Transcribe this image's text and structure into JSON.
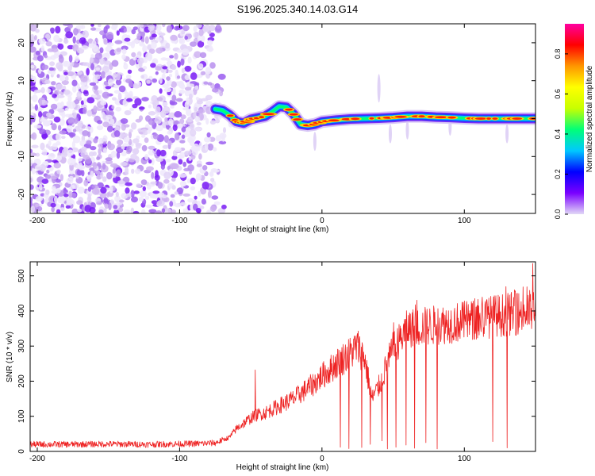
{
  "figure": {
    "title": "S196.2025.340.14.03.G14"
  },
  "colors": {
    "snr_line": "#ee2222",
    "frame": "#000000"
  },
  "chart_data": [
    {
      "type": "heatmap",
      "title": "S196.2025.340.14.03.G14",
      "xlabel": "Height of straight line (km)",
      "ylabel": "Frequency (Hz)",
      "xlim": [
        -205,
        150
      ],
      "ylim": [
        -25,
        25
      ],
      "xticks": [
        -200,
        -100,
        0,
        100
      ],
      "yticks": [
        -20,
        -10,
        0,
        10,
        20
      ],
      "grid": false,
      "noise_region_x": [
        -205,
        -75
      ],
      "colorbar": {
        "label": "Normalized spectral amplitude",
        "ticks": [
          0.0,
          0.2,
          0.4,
          0.6,
          0.8
        ],
        "range": [
          0,
          0.95
        ],
        "colormap": [
          "#e2d8f6",
          "#7a00ff",
          "#0000ff",
          "#00c8ff",
          "#00ff78",
          "#c8ff00",
          "#ffff00",
          "#ff9600",
          "#ff0000",
          "#ff00a0"
        ]
      },
      "ridge": {
        "x": [
          -75,
          -70,
          -65,
          -60,
          -55,
          -50,
          -45,
          -40,
          -35,
          -30,
          -25,
          -20,
          -15,
          -10,
          -5,
          0,
          10,
          20,
          30,
          40,
          50,
          60,
          70,
          80,
          90,
          100,
          110,
          120,
          130,
          140,
          150
        ],
        "y": [
          2.5,
          2.2,
          1.0,
          -0.8,
          -1.2,
          -0.2,
          0.2,
          0.6,
          1.8,
          3.2,
          3.0,
          1.2,
          -1.5,
          -1.8,
          -1.5,
          -0.8,
          -0.4,
          -0.1,
          0.0,
          0.1,
          0.3,
          0.6,
          0.6,
          0.4,
          0.3,
          0.1,
          0.0,
          0.0,
          0.0,
          0.0,
          0.0
        ]
      }
    },
    {
      "type": "line",
      "xlabel": "Height of straight line (km)",
      "ylabel": "SNR (10 * v/v)",
      "xlim": [
        -205,
        150
      ],
      "ylim": [
        0,
        540
      ],
      "xticks": [
        -200,
        -100,
        0,
        100
      ],
      "yticks": [
        0,
        100,
        200,
        300,
        400,
        500
      ],
      "grid": false,
      "series": [
        {
          "name": "SNR",
          "x": [
            -205,
            -180,
            -150,
            -120,
            -90,
            -75,
            -65,
            -60,
            -55,
            -50,
            -45,
            -40,
            -35,
            -30,
            -25,
            -20,
            -15,
            -10,
            -5,
            0,
            5,
            10,
            15,
            20,
            25,
            30,
            35,
            40,
            45,
            50,
            55,
            60,
            70,
            80,
            90,
            100,
            110,
            120,
            130,
            140,
            150
          ],
          "values": [
            20,
            20,
            21,
            20,
            22,
            24,
            40,
            65,
            80,
            95,
            105,
            110,
            120,
            130,
            140,
            150,
            165,
            180,
            195,
            215,
            230,
            250,
            265,
            280,
            300,
            265,
            150,
            185,
            240,
            290,
            320,
            350,
            355,
            360,
            365,
            370,
            375,
            385,
            390,
            395,
            400
          ],
          "spikes": [
            {
              "x": -47,
              "value": 232
            },
            {
              "x": 13,
              "value": 12
            },
            {
              "x": 19,
              "value": 8
            },
            {
              "x": 28,
              "value": 11
            },
            {
              "x": 34,
              "value": 20
            },
            {
              "x": 42,
              "value": 30
            },
            {
              "x": 46,
              "value": 7
            },
            {
              "x": 52,
              "value": 12
            },
            {
              "x": 59,
              "value": 18
            },
            {
              "x": 65,
              "value": 9
            },
            {
              "x": 73,
              "value": 25
            },
            {
              "x": 81,
              "value": 7
            },
            {
              "x": 120,
              "value": 28
            },
            {
              "x": 130,
              "value": 10
            },
            {
              "x": 148,
              "value": 535
            }
          ]
        }
      ]
    }
  ]
}
